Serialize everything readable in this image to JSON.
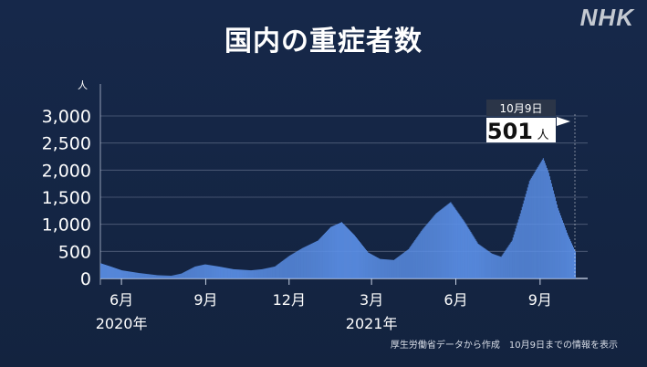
{
  "logo": "NHK",
  "source_note": "厚生労働省データから作成　10月9日までの情報を表示",
  "chart_data": {
    "type": "bar",
    "title": "国内の重症者数",
    "ylabel": "人",
    "ylim": [
      0,
      3000
    ],
    "yticks": [
      0,
      500,
      1000,
      1500,
      2000,
      2500,
      3000
    ],
    "ytick_labels": [
      "0",
      "500",
      "1,000",
      "1,500",
      "2,000",
      "2,500",
      "3,000"
    ],
    "x_range": [
      "2020-05-09",
      "2021-10-09"
    ],
    "x_ticks": [
      {
        "date": "2020-06-01",
        "label": "6月"
      },
      {
        "date": "2020-09-01",
        "label": "9月"
      },
      {
        "date": "2020-12-01",
        "label": "12月"
      },
      {
        "date": "2021-03-01",
        "label": "3月"
      },
      {
        "date": "2021-06-01",
        "label": "6月"
      },
      {
        "date": "2021-09-01",
        "label": "9月"
      }
    ],
    "year_labels": [
      {
        "date": "2020-06-01",
        "label": "2020年"
      },
      {
        "date": "2021-03-01",
        "label": "2021年"
      }
    ],
    "series": [
      {
        "color": "#5b8fe6",
        "points": [
          [
            "2020-05-09",
            280
          ],
          [
            "2020-05-20",
            220
          ],
          [
            "2020-06-01",
            150
          ],
          [
            "2020-06-20",
            100
          ],
          [
            "2020-07-10",
            60
          ],
          [
            "2020-07-25",
            50
          ],
          [
            "2020-08-05",
            90
          ],
          [
            "2020-08-20",
            220
          ],
          [
            "2020-08-31",
            260
          ],
          [
            "2020-09-15",
            220
          ],
          [
            "2020-10-01",
            170
          ],
          [
            "2020-10-20",
            150
          ],
          [
            "2020-11-01",
            170
          ],
          [
            "2020-11-15",
            220
          ],
          [
            "2020-12-01",
            420
          ],
          [
            "2020-12-15",
            560
          ],
          [
            "2021-01-01",
            700
          ],
          [
            "2021-01-15",
            950
          ],
          [
            "2021-01-27",
            1040
          ],
          [
            "2021-02-10",
            800
          ],
          [
            "2021-02-25",
            480
          ],
          [
            "2021-03-10",
            360
          ],
          [
            "2021-03-25",
            340
          ],
          [
            "2021-04-10",
            540
          ],
          [
            "2021-04-25",
            900
          ],
          [
            "2021-05-10",
            1200
          ],
          [
            "2021-05-26",
            1410
          ],
          [
            "2021-06-10",
            1050
          ],
          [
            "2021-06-25",
            640
          ],
          [
            "2021-07-10",
            460
          ],
          [
            "2021-07-20",
            400
          ],
          [
            "2021-08-01",
            700
          ],
          [
            "2021-08-10",
            1200
          ],
          [
            "2021-08-20",
            1800
          ],
          [
            "2021-08-27",
            2000
          ],
          [
            "2021-09-04",
            2221
          ],
          [
            "2021-09-10",
            1950
          ],
          [
            "2021-09-20",
            1300
          ],
          [
            "2021-10-01",
            800
          ],
          [
            "2021-10-09",
            501
          ]
        ]
      }
    ],
    "callout": {
      "date_label": "10月9日",
      "value": "501",
      "unit": "人"
    }
  }
}
